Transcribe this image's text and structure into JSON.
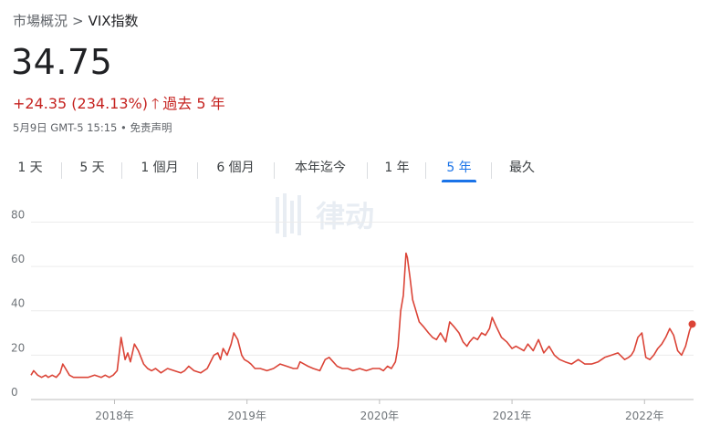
{
  "breadcrumb": {
    "parent": "市場概況",
    "separator": ">",
    "current": "VIX指数"
  },
  "quote": {
    "price": "34.75",
    "change": "+24.35 (234.13%)",
    "arrow": "🡑",
    "period": "過去 5 年",
    "meta": "5月9日 GMT-5 15:15 • 免责声明"
  },
  "tabs": [
    {
      "label": "1 天",
      "active": false
    },
    {
      "label": "5 天",
      "active": false
    },
    {
      "label": "1 個月",
      "active": false
    },
    {
      "label": "6 個月",
      "active": false
    },
    {
      "label": "本年迄今",
      "active": false
    },
    {
      "label": "1 年",
      "active": false
    },
    {
      "label": "5 年",
      "active": true
    },
    {
      "label": "最久",
      "active": false
    }
  ],
  "watermark": {
    "text": "律动"
  },
  "colors": {
    "line": "#db4437",
    "accent": "#1a73e8",
    "negative_text": "#c5221f",
    "grid": "#ececec"
  },
  "chart_data": {
    "type": "line",
    "x_tick_labels": [
      "2018年",
      "2019年",
      "2020年",
      "2021年",
      "2022年"
    ],
    "y_tick_labels": [
      "0",
      "20",
      "40",
      "60",
      "80"
    ],
    "ylim": [
      0,
      88
    ],
    "xlim": [
      2017.37,
      2022.37
    ],
    "x_ticks": [
      2018,
      2019,
      2020,
      2021,
      2022
    ],
    "y_ticks": [
      0,
      20,
      40,
      60,
      80
    ],
    "series": [
      {
        "x": [
          2017.37,
          2017.39,
          2017.42,
          2017.45,
          2017.48,
          2017.5,
          2017.53,
          2017.56,
          2017.59,
          2017.61,
          2017.63,
          2017.66,
          2017.69,
          2017.72,
          2017.75,
          2017.8,
          2017.85,
          2017.9,
          2017.93,
          2017.96,
          2017.99,
          2018.02,
          2018.05,
          2018.08,
          2018.1,
          2018.12,
          2018.15,
          2018.18,
          2018.2,
          2018.22,
          2018.25,
          2018.28,
          2018.31,
          2018.35,
          2018.4,
          2018.45,
          2018.5,
          2018.53,
          2018.56,
          2018.6,
          2018.65,
          2018.7,
          2018.75,
          2018.78,
          2018.8,
          2018.82,
          2018.85,
          2018.88,
          2018.9,
          2018.93,
          2018.96,
          2018.98,
          2019.01,
          2019.03,
          2019.06,
          2019.1,
          2019.15,
          2019.2,
          2019.25,
          2019.3,
          2019.35,
          2019.38,
          2019.4,
          2019.43,
          2019.46,
          2019.5,
          2019.55,
          2019.59,
          2019.62,
          2019.65,
          2019.68,
          2019.72,
          2019.76,
          2019.8,
          2019.85,
          2019.9,
          2019.95,
          2020.0,
          2020.03,
          2020.06,
          2020.09,
          2020.12,
          2020.14,
          2020.16,
          2020.18,
          2020.2,
          2020.21,
          2020.23,
          2020.25,
          2020.27,
          2020.3,
          2020.33,
          2020.37,
          2020.4,
          2020.43,
          2020.46,
          2020.5,
          2020.53,
          2020.56,
          2020.6,
          2020.63,
          2020.66,
          2020.68,
          2020.71,
          2020.74,
          2020.77,
          2020.8,
          2020.83,
          2020.85,
          2020.88,
          2020.92,
          2020.96,
          2021.0,
          2021.03,
          2021.06,
          2021.09,
          2021.12,
          2021.16,
          2021.2,
          2021.24,
          2021.28,
          2021.32,
          2021.36,
          2021.4,
          2021.45,
          2021.5,
          2021.55,
          2021.6,
          2021.65,
          2021.7,
          2021.75,
          2021.8,
          2021.85,
          2021.88,
          2021.9,
          2021.92,
          2021.95,
          2021.98,
          2022.01,
          2022.04,
          2022.07,
          2022.1,
          2022.13,
          2022.16,
          2022.19,
          2022.22,
          2022.25,
          2022.28,
          2022.31,
          2022.34,
          2022.36
        ],
        "y": [
          11,
          13,
          11,
          10,
          11,
          10,
          11,
          10,
          12,
          16,
          14,
          11,
          10,
          10,
          10,
          10,
          11,
          10,
          11,
          10,
          11,
          13,
          28,
          18,
          21,
          17,
          25,
          22,
          19,
          16,
          14,
          13,
          14,
          12,
          14,
          13,
          12,
          13,
          15,
          13,
          12,
          14,
          20,
          21,
          18,
          23,
          20,
          25,
          30,
          27,
          20,
          18,
          17,
          16,
          14,
          14,
          13,
          14,
          16,
          15,
          14,
          14,
          17,
          16,
          15,
          14,
          13,
          18,
          19,
          17,
          15,
          14,
          14,
          13,
          14,
          13,
          14,
          14,
          13,
          15,
          14,
          17,
          24,
          40,
          47,
          66,
          64,
          55,
          45,
          41,
          35,
          33,
          30,
          28,
          27,
          30,
          26,
          35,
          33,
          30,
          26,
          24,
          26,
          28,
          27,
          30,
          29,
          32,
          37,
          33,
          28,
          26,
          23,
          24,
          23,
          22,
          25,
          22,
          27,
          21,
          24,
          20,
          18,
          17,
          16,
          18,
          16,
          16,
          17,
          19,
          20,
          21,
          18,
          19,
          20,
          22,
          28,
          30,
          19,
          18,
          20,
          23,
          25,
          28,
          32,
          29,
          22,
          20,
          24,
          31,
          34
        ]
      }
    ]
  }
}
